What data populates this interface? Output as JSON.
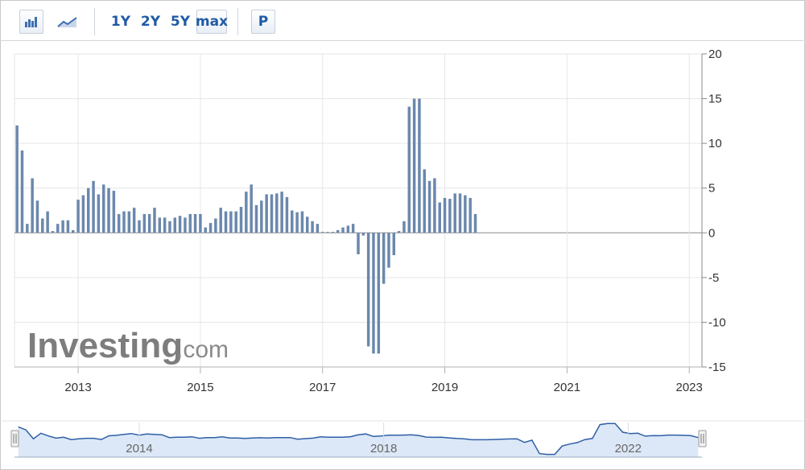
{
  "toolbar": {
    "buttons": [
      {
        "name": "bar-chart-toggle",
        "icon": "bar-chart-icon",
        "label": ""
      },
      {
        "name": "line-chart-toggle",
        "icon": "line-chart-icon",
        "label": ""
      },
      {
        "name": "range-1y",
        "label": "1Y"
      },
      {
        "name": "range-2y",
        "label": "2Y"
      },
      {
        "name": "range-5y",
        "label": "5Y"
      },
      {
        "name": "range-max",
        "label": "max"
      },
      {
        "name": "p-button",
        "label": "P"
      }
    ]
  },
  "watermark": {
    "main": "Investing",
    "sub": ".com"
  },
  "colors": {
    "bar": "#6b88ad",
    "navigator_line": "#2f5fa6",
    "navigator_fill": "#dce8f7"
  },
  "chart_data": {
    "type": "bar",
    "title": "",
    "xlabel": "",
    "ylabel": "",
    "ylim": [
      -15,
      20
    ],
    "y_ticks": [
      "20",
      "15",
      "10",
      "5",
      "0",
      "-5",
      "-10",
      "-15"
    ],
    "x_ticks": [
      "2013",
      "2015",
      "2017",
      "2019",
      "2021",
      "2023"
    ],
    "x_range": [
      "2012-01",
      "2023-03"
    ],
    "grid": true,
    "y_axis_position": "right",
    "values": [
      12.0,
      9.2,
      1.0,
      6.1,
      3.6,
      1.6,
      2.4,
      0.2,
      1.0,
      1.4,
      1.4,
      0.3,
      3.7,
      4.2,
      5.0,
      5.8,
      4.3,
      5.4,
      5.0,
      4.7,
      2.1,
      2.4,
      2.4,
      2.8,
      1.4,
      2.1,
      2.1,
      2.8,
      1.7,
      1.7,
      1.3,
      1.7,
      1.9,
      1.7,
      2.1,
      2.1,
      2.1,
      0.6,
      1.1,
      1.6,
      2.8,
      2.4,
      2.4,
      2.4,
      2.9,
      4.6,
      5.4,
      3.1,
      3.6,
      4.3,
      4.3,
      4.4,
      4.6,
      4.0,
      2.5,
      2.3,
      2.4,
      1.8,
      1.3,
      1.0,
      0.1,
      0.1,
      0.1,
      0.3,
      0.6,
      0.8,
      1.0,
      -2.4,
      -0.3,
      -12.7,
      -13.5,
      -13.5,
      -5.7,
      -3.9,
      -2.5,
      0.2,
      1.3,
      14.1,
      15.0,
      15.0,
      7.1,
      5.8,
      6.1,
      3.4,
      3.9,
      3.8,
      4.4,
      4.4,
      4.2,
      3.9,
      2.1
    ],
    "navigator": {
      "x_ticks": [
        "2014",
        "2018",
        "2022"
      ]
    }
  }
}
